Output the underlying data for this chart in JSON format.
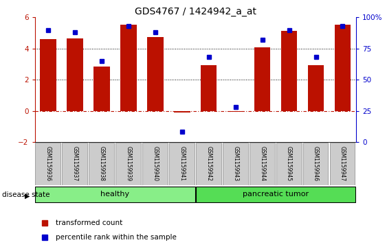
{
  "title": "GDS4767 / 1424942_a_at",
  "samples": [
    "GSM1159936",
    "GSM1159937",
    "GSM1159938",
    "GSM1159939",
    "GSM1159940",
    "GSM1159941",
    "GSM1159942",
    "GSM1159943",
    "GSM1159944",
    "GSM1159945",
    "GSM1159946",
    "GSM1159947"
  ],
  "bar_values": [
    4.6,
    4.65,
    2.85,
    5.55,
    4.75,
    -0.12,
    2.95,
    -0.05,
    4.1,
    5.15,
    2.95,
    5.55
  ],
  "percentile_values": [
    90,
    88,
    65,
    93,
    88,
    8,
    68,
    28,
    82,
    90,
    68,
    93
  ],
  "bar_color": "#bb1100",
  "percentile_color": "#0000cc",
  "ylim_left": [
    -2,
    6
  ],
  "ylim_right": [
    0,
    100
  ],
  "yticks_left": [
    -2,
    0,
    2,
    4,
    6
  ],
  "yticks_right": [
    0,
    25,
    50,
    75,
    100
  ],
  "yticklabels_right": [
    "0",
    "25",
    "50",
    "75",
    "100%"
  ],
  "grid_lines_dotted": [
    2,
    4
  ],
  "background_color": "#ffffff",
  "disease_state_label": "disease state",
  "healthy_label": "healthy",
  "tumor_label": "pancreatic tumor",
  "legend_bar": "transformed count",
  "legend_pct": "percentile rank within the sample",
  "healthy_color": "#88ee88",
  "tumor_color": "#55dd55",
  "xticklabel_bg": "#cccccc",
  "n_healthy": 6,
  "n_tumor": 6
}
